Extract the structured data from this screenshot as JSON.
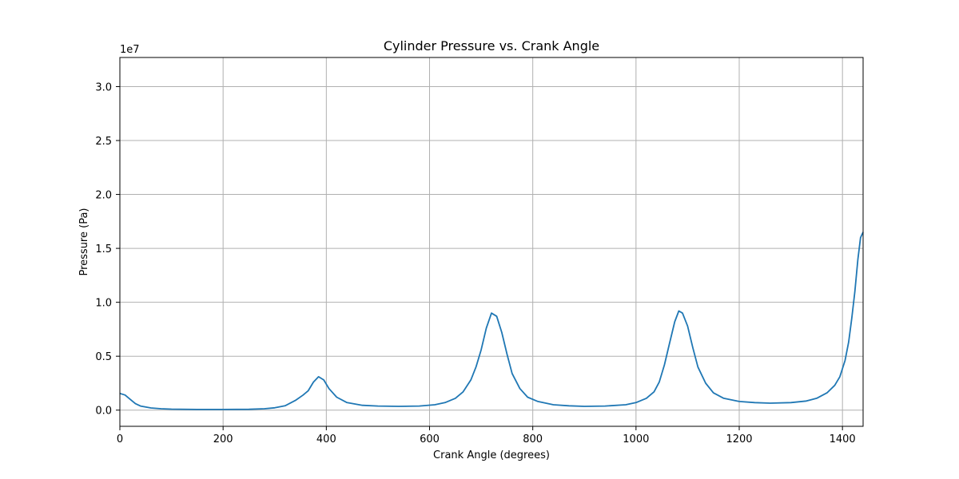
{
  "chart_data": {
    "type": "line",
    "title": "Cylinder Pressure vs. Crank Angle",
    "xlabel": "Crank Angle (degrees)",
    "ylabel": "Pressure (Pa)",
    "y_offset_label": "1e7",
    "y_multiplier": 10000000,
    "xlim": [
      0,
      1440
    ],
    "ylim": [
      -1500000,
      32700000
    ],
    "x_ticks": [
      0,
      200,
      400,
      600,
      800,
      1000,
      1200,
      1400
    ],
    "x_tick_labels": [
      "0",
      "200",
      "400",
      "600",
      "800",
      "1000",
      "1200",
      "1400"
    ],
    "y_ticks": [
      0,
      5000000,
      10000000,
      15000000,
      20000000,
      25000000,
      30000000
    ],
    "y_tick_labels": [
      "0.0",
      "0.5",
      "1.0",
      "1.5",
      "2.0",
      "2.5",
      "3.0"
    ],
    "grid": true,
    "series": [
      {
        "color": "#1f77b4",
        "x": [
          0,
          10,
          20,
          30,
          40,
          60,
          80,
          100,
          150,
          200,
          250,
          280,
          300,
          320,
          340,
          355,
          365,
          375,
          385,
          395,
          405,
          420,
          440,
          470,
          500,
          540,
          580,
          610,
          630,
          650,
          665,
          680,
          690,
          700,
          710,
          720,
          730,
          740,
          750,
          760,
          775,
          790,
          810,
          840,
          870,
          900,
          940,
          980,
          1000,
          1020,
          1035,
          1045,
          1055,
          1065,
          1075,
          1083,
          1090,
          1100,
          1110,
          1120,
          1135,
          1150,
          1170,
          1200,
          1230,
          1260,
          1300,
          1330,
          1350,
          1370,
          1385,
          1395,
          1405,
          1412,
          1418,
          1424,
          1430,
          1435,
          1440
        ],
        "y": [
          1550000,
          1400000,
          1000000,
          600000,
          380000,
          200000,
          130000,
          90000,
          60000,
          60000,
          80000,
          130000,
          220000,
          400000,
          900000,
          1400000,
          1800000,
          2600000,
          3100000,
          2800000,
          2000000,
          1200000,
          700000,
          450000,
          380000,
          350000,
          380000,
          500000,
          700000,
          1100000,
          1700000,
          2800000,
          4000000,
          5600000,
          7600000,
          9000000,
          8700000,
          7200000,
          5200000,
          3400000,
          2000000,
          1200000,
          800000,
          500000,
          400000,
          350000,
          380000,
          500000,
          700000,
          1100000,
          1700000,
          2600000,
          4200000,
          6200000,
          8200000,
          9200000,
          9000000,
          7800000,
          5800000,
          4000000,
          2500000,
          1600000,
          1100000,
          800000,
          700000,
          650000,
          700000,
          850000,
          1100000,
          1600000,
          2300000,
          3100000,
          4600000,
          6300000,
          8500000,
          11000000,
          14000000,
          16000000,
          16500000
        ]
      }
    ]
  }
}
